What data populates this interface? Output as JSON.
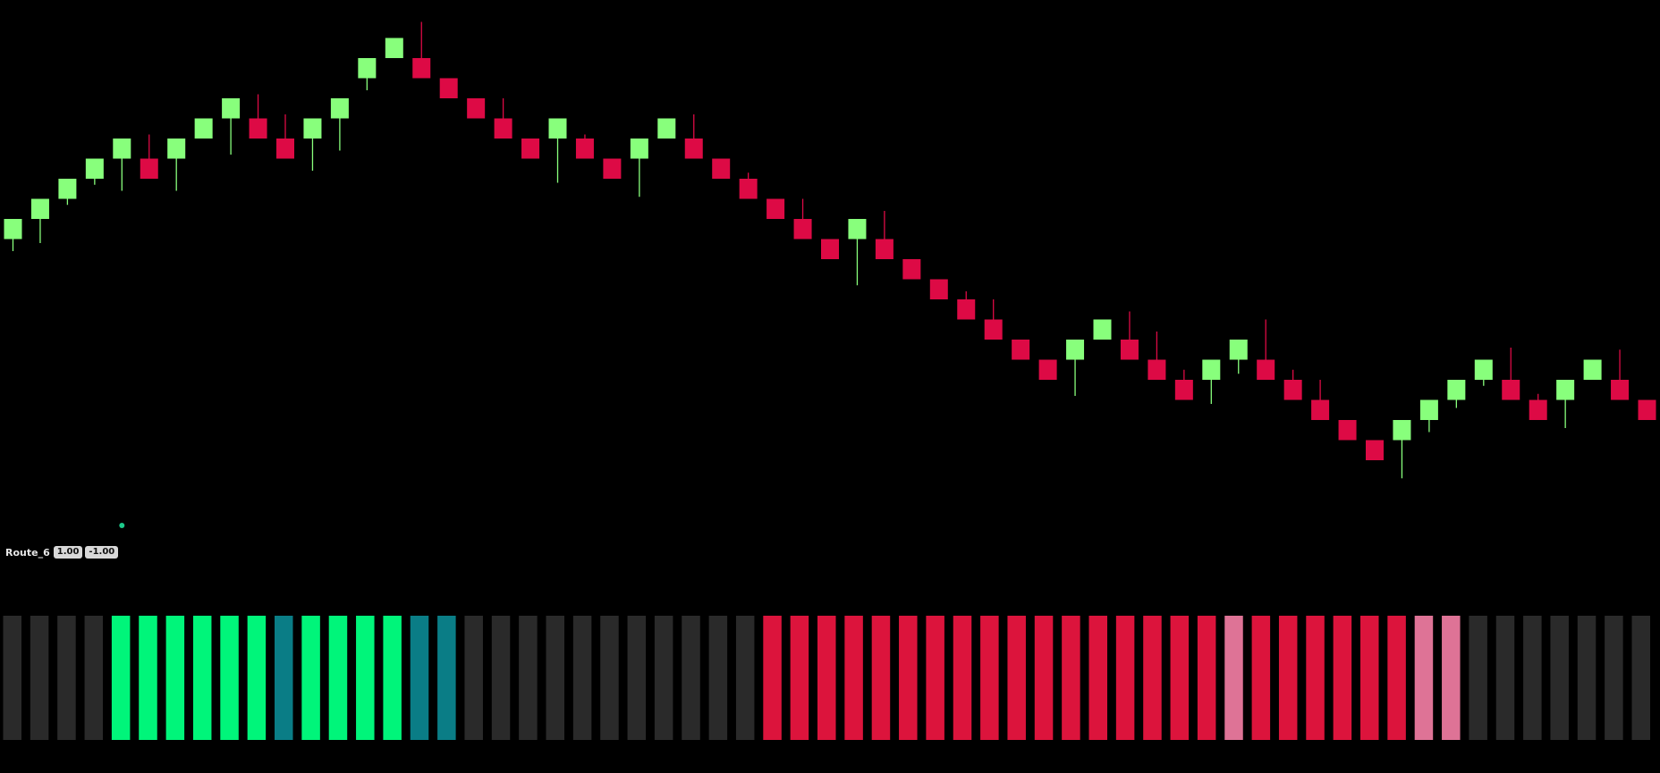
{
  "indicator": {
    "name": "Route_6",
    "value_1": "1.00",
    "value_2": "-1.00"
  },
  "colors": {
    "background": "#000000",
    "candle_up": "#88ff7c",
    "candle_down": "#dd0a45",
    "hist_neutral": "#2a2a2a",
    "hist_strong_up": "#00f57a",
    "hist_weak_up": "#0a7d86",
    "hist_strong_down": "#dc143c",
    "hist_weak_down": "#de7396",
    "marker": "#1cc98a"
  },
  "chart_data": [
    {
      "type": "candlestick",
      "title": "",
      "y_direction": "price units (higher value = higher on screen)",
      "ylim": [
        -20,
        1
      ],
      "candles": [
        {
          "dir": "up",
          "open": -9,
          "close": -8,
          "high": -8,
          "low": -9.6
        },
        {
          "dir": "up",
          "open": -8,
          "close": -7,
          "high": -7,
          "low": -9.2
        },
        {
          "dir": "up",
          "open": -7,
          "close": -6,
          "high": -6,
          "low": -7.3
        },
        {
          "dir": "up",
          "open": -6,
          "close": -5,
          "high": -5,
          "low": -6.3
        },
        {
          "dir": "up",
          "open": -5,
          "close": -4,
          "high": -4,
          "low": -6.6
        },
        {
          "dir": "down",
          "open": -5,
          "close": -6,
          "high": -3.8,
          "low": -6
        },
        {
          "dir": "up",
          "open": -5,
          "close": -4,
          "high": -4,
          "low": -6.6
        },
        {
          "dir": "up",
          "open": -4,
          "close": -3,
          "high": -3,
          "low": -4
        },
        {
          "dir": "up",
          "open": -3,
          "close": -2,
          "high": -2,
          "low": -4.8
        },
        {
          "dir": "down",
          "open": -3,
          "close": -4,
          "high": -1.8,
          "low": -4
        },
        {
          "dir": "down",
          "open": -4,
          "close": -5,
          "high": -2.8,
          "low": -5
        },
        {
          "dir": "up",
          "open": -4,
          "close": -3,
          "high": -3,
          "low": -5.6
        },
        {
          "dir": "up",
          "open": -3,
          "close": -2,
          "high": -2,
          "low": -4.6
        },
        {
          "dir": "up",
          "open": -1,
          "close": 0,
          "high": 0,
          "low": -1.6
        },
        {
          "dir": "up",
          "open": 0,
          "close": 1,
          "high": 1,
          "low": 0
        },
        {
          "dir": "down",
          "open": 0,
          "close": -1,
          "high": 1.8,
          "low": -1
        },
        {
          "dir": "down",
          "open": -1,
          "close": -2,
          "high": -1,
          "low": -2
        },
        {
          "dir": "down",
          "open": -2,
          "close": -3,
          "high": -2,
          "low": -3
        },
        {
          "dir": "down",
          "open": -3,
          "close": -4,
          "high": -2,
          "low": -4
        },
        {
          "dir": "down",
          "open": -4,
          "close": -5,
          "high": -4,
          "low": -5
        },
        {
          "dir": "up",
          "open": -4,
          "close": -3,
          "high": -3,
          "low": -6.2
        },
        {
          "dir": "down",
          "open": -4,
          "close": -5,
          "high": -3.8,
          "low": -5
        },
        {
          "dir": "down",
          "open": -5,
          "close": -6,
          "high": -5,
          "low": -6
        },
        {
          "dir": "up",
          "open": -5,
          "close": -4,
          "high": -4,
          "low": -6.9
        },
        {
          "dir": "up",
          "open": -4,
          "close": -3,
          "high": -3,
          "low": -4
        },
        {
          "dir": "down",
          "open": -4,
          "close": -5,
          "high": -2.8,
          "low": -5
        },
        {
          "dir": "down",
          "open": -5,
          "close": -6,
          "high": -5,
          "low": -6
        },
        {
          "dir": "down",
          "open": -6,
          "close": -7,
          "high": -5.7,
          "low": -7
        },
        {
          "dir": "down",
          "open": -7,
          "close": -8,
          "high": -7,
          "low": -8
        },
        {
          "dir": "down",
          "open": -8,
          "close": -9,
          "high": -7,
          "low": -9
        },
        {
          "dir": "down",
          "open": -9,
          "close": -10,
          "high": -9,
          "low": -10
        },
        {
          "dir": "up",
          "open": -9,
          "close": -8,
          "high": -8,
          "low": -11.3
        },
        {
          "dir": "down",
          "open": -9,
          "close": -10,
          "high": -7.6,
          "low": -10
        },
        {
          "dir": "down",
          "open": -10,
          "close": -11,
          "high": -10,
          "low": -11
        },
        {
          "dir": "down",
          "open": -11,
          "close": -12,
          "high": -11,
          "low": -12
        },
        {
          "dir": "down",
          "open": -12,
          "close": -13,
          "high": -11.6,
          "low": -13
        },
        {
          "dir": "down",
          "open": -13,
          "close": -14,
          "high": -12,
          "low": -14
        },
        {
          "dir": "down",
          "open": -14,
          "close": -15,
          "high": -14,
          "low": -15
        },
        {
          "dir": "down",
          "open": -15,
          "close": -16,
          "high": -15,
          "low": -16
        },
        {
          "dir": "up",
          "open": -15,
          "close": -14,
          "high": -14,
          "low": -16.8
        },
        {
          "dir": "up",
          "open": -14,
          "close": -13,
          "high": -13,
          "low": -14
        },
        {
          "dir": "down",
          "open": -14,
          "close": -15,
          "high": -12.6,
          "low": -15
        },
        {
          "dir": "down",
          "open": -15,
          "close": -16,
          "high": -13.6,
          "low": -16
        },
        {
          "dir": "down",
          "open": -16,
          "close": -17,
          "high": -15.5,
          "low": -17
        },
        {
          "dir": "up",
          "open": -16,
          "close": -15,
          "high": -15,
          "low": -17.2
        },
        {
          "dir": "up",
          "open": -15,
          "close": -14,
          "high": -14,
          "low": -15.7
        },
        {
          "dir": "down",
          "open": -15,
          "close": -16,
          "high": -13,
          "low": -16
        },
        {
          "dir": "down",
          "open": -16,
          "close": -17,
          "high": -15.5,
          "low": -17
        },
        {
          "dir": "down",
          "open": -17,
          "close": -18,
          "high": -16,
          "low": -18
        },
        {
          "dir": "down",
          "open": -18,
          "close": -19,
          "high": -18,
          "low": -19
        },
        {
          "dir": "down",
          "open": -19,
          "close": -20,
          "high": -19,
          "low": -20
        },
        {
          "dir": "up",
          "open": -19,
          "close": -18,
          "high": -18,
          "low": -20.9
        },
        {
          "dir": "up",
          "open": -18,
          "close": -17,
          "high": -17,
          "low": -18.6
        },
        {
          "dir": "up",
          "open": -17,
          "close": -16,
          "high": -16,
          "low": -17.4
        },
        {
          "dir": "up",
          "open": -16,
          "close": -15,
          "high": -15,
          "low": -16.3
        },
        {
          "dir": "down",
          "open": -16,
          "close": -17,
          "high": -14.4,
          "low": -17
        },
        {
          "dir": "down",
          "open": -17,
          "close": -18,
          "high": -16.7,
          "low": -18
        },
        {
          "dir": "up",
          "open": -17,
          "close": -16,
          "high": -16,
          "low": -18.4
        },
        {
          "dir": "up",
          "open": -16,
          "close": -15,
          "high": -15,
          "low": -16
        },
        {
          "dir": "down",
          "open": -16,
          "close": -17,
          "high": -14.5,
          "low": -17
        },
        {
          "dir": "down",
          "open": -17,
          "close": -18,
          "high": -17,
          "low": -18
        }
      ]
    },
    {
      "type": "histogram",
      "title": "Route_6",
      "values": [
        0,
        0,
        0,
        0,
        1,
        1,
        1,
        1,
        1,
        1,
        0.5,
        1,
        1,
        1,
        1,
        0.5,
        0.5,
        0,
        0,
        0,
        0,
        0,
        0,
        0,
        0,
        0,
        0,
        0,
        -1,
        -1,
        -1,
        -1,
        -1,
        -1,
        -1,
        -1,
        -1,
        -1,
        -1,
        -1,
        -1,
        -1,
        -1,
        -1,
        -1,
        -0.5,
        -1,
        -1,
        -1,
        -1,
        -1,
        -1,
        -0.5,
        -0.5,
        0,
        0,
        0,
        0,
        0,
        0,
        0
      ],
      "legend": "1 = strong up, 0.5 = weak up, 0 = neutral, -0.5 = weak down, -1 = strong down"
    }
  ]
}
